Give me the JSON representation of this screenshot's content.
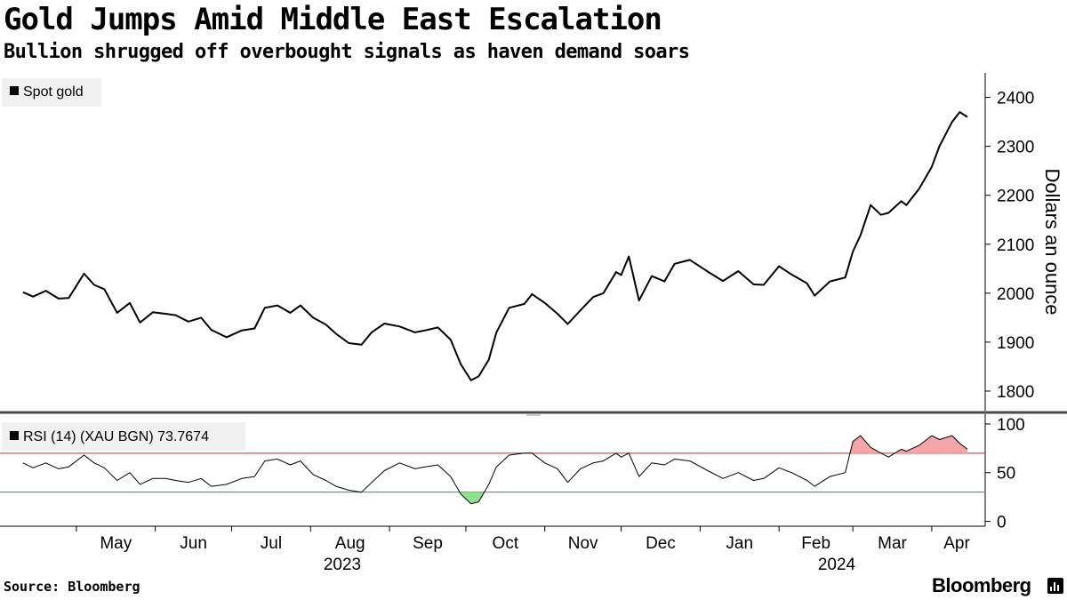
{
  "header": {
    "title": "Gold Jumps Amid Middle East Escalation",
    "subtitle": "Bullion shrugged off overbought signals as haven demand soars"
  },
  "footer": {
    "source": "Source: Bloomberg",
    "brand": "Bloomberg"
  },
  "colors": {
    "line": "#000000",
    "overbought": "#d62728",
    "overbought_fill": "#f4a6a6",
    "oversold": "#2ca02c",
    "oversold_fill": "#8fe08f",
    "divider": "#4a4a4a"
  },
  "chart_data": [
    {
      "type": "line",
      "panel": "price",
      "ylabel": "Dollars an ounce",
      "yaxis_side": "right",
      "ylim": [
        1760,
        2450
      ],
      "yticks": [
        1800,
        1900,
        2000,
        2100,
        2200,
        2300,
        2400
      ],
      "grid": false,
      "legend": {
        "placement": "top-left"
      },
      "series": [
        {
          "name": "Spot gold",
          "x": [
            "2023-04-10",
            "2023-04-14",
            "2023-04-19",
            "2023-04-24",
            "2023-04-28",
            "2023-05-04",
            "2023-05-08",
            "2023-05-12",
            "2023-05-17",
            "2023-05-22",
            "2023-05-26",
            "2023-05-31",
            "2023-06-05",
            "2023-06-09",
            "2023-06-14",
            "2023-06-19",
            "2023-06-23",
            "2023-06-29",
            "2023-07-05",
            "2023-07-10",
            "2023-07-14",
            "2023-07-19",
            "2023-07-24",
            "2023-07-28",
            "2023-08-02",
            "2023-08-07",
            "2023-08-11",
            "2023-08-16",
            "2023-08-21",
            "2023-08-25",
            "2023-08-30",
            "2023-09-05",
            "2023-09-11",
            "2023-09-15",
            "2023-09-20",
            "2023-09-25",
            "2023-09-29",
            "2023-10-03",
            "2023-10-06",
            "2023-10-10",
            "2023-10-13",
            "2023-10-18",
            "2023-10-24",
            "2023-10-27",
            "2023-11-01",
            "2023-11-06",
            "2023-11-10",
            "2023-11-15",
            "2023-11-20",
            "2023-11-24",
            "2023-11-29",
            "2023-12-01",
            "2023-12-04",
            "2023-12-08",
            "2023-12-13",
            "2023-12-18",
            "2023-12-22",
            "2023-12-28",
            "2024-01-04",
            "2024-01-10",
            "2024-01-16",
            "2024-01-22",
            "2024-01-26",
            "2024-02-01",
            "2024-02-06",
            "2024-02-12",
            "2024-02-15",
            "2024-02-21",
            "2024-02-27",
            "2024-03-01",
            "2024-03-04",
            "2024-03-08",
            "2024-03-12",
            "2024-03-15",
            "2024-03-20",
            "2024-03-22",
            "2024-03-27",
            "2024-04-01",
            "2024-04-04",
            "2024-04-09",
            "2024-04-12",
            "2024-04-15"
          ],
          "values": [
            2002,
            1993,
            2005,
            1989,
            1990,
            2040,
            2017,
            2008,
            1960,
            1980,
            1940,
            1961,
            1958,
            1955,
            1942,
            1950,
            1925,
            1910,
            1924,
            1928,
            1970,
            1975,
            1960,
            1975,
            1950,
            1936,
            1917,
            1898,
            1895,
            1920,
            1938,
            1932,
            1920,
            1924,
            1930,
            1905,
            1855,
            1822,
            1830,
            1864,
            1920,
            1970,
            1978,
            1998,
            1980,
            1958,
            1937,
            1965,
            1992,
            2000,
            2043,
            2037,
            2075,
            1985,
            2035,
            2024,
            2060,
            2068,
            2044,
            2025,
            2045,
            2018,
            2017,
            2055,
            2038,
            2020,
            1995,
            2024,
            2032,
            2085,
            2118,
            2180,
            2160,
            2164,
            2188,
            2180,
            2213,
            2258,
            2300,
            2350,
            2370,
            2360
          ]
        }
      ]
    },
    {
      "type": "line",
      "panel": "rsi",
      "ylim": [
        -5,
        110
      ],
      "yticks": [
        0,
        50,
        100
      ],
      "overbought_level": 70,
      "oversold_level": 30,
      "legend": {
        "placement": "top-left"
      },
      "series": [
        {
          "name": "RSI (14) (XAU BGN)",
          "last_value_label": "73.7674",
          "x": [
            "2023-04-10",
            "2023-04-14",
            "2023-04-19",
            "2023-04-24",
            "2023-04-28",
            "2023-05-04",
            "2023-05-08",
            "2023-05-12",
            "2023-05-17",
            "2023-05-22",
            "2023-05-26",
            "2023-05-31",
            "2023-06-05",
            "2023-06-09",
            "2023-06-14",
            "2023-06-19",
            "2023-06-23",
            "2023-06-29",
            "2023-07-05",
            "2023-07-10",
            "2023-07-14",
            "2023-07-19",
            "2023-07-24",
            "2023-07-28",
            "2023-08-02",
            "2023-08-07",
            "2023-08-11",
            "2023-08-16",
            "2023-08-21",
            "2023-08-25",
            "2023-08-30",
            "2023-09-05",
            "2023-09-11",
            "2023-09-15",
            "2023-09-20",
            "2023-09-25",
            "2023-09-29",
            "2023-10-03",
            "2023-10-06",
            "2023-10-10",
            "2023-10-13",
            "2023-10-18",
            "2023-10-24",
            "2023-10-27",
            "2023-11-01",
            "2023-11-06",
            "2023-11-10",
            "2023-11-15",
            "2023-11-20",
            "2023-11-24",
            "2023-11-29",
            "2023-12-01",
            "2023-12-04",
            "2023-12-08",
            "2023-12-13",
            "2023-12-18",
            "2023-12-22",
            "2023-12-28",
            "2024-01-04",
            "2024-01-10",
            "2024-01-16",
            "2024-01-22",
            "2024-01-26",
            "2024-02-01",
            "2024-02-06",
            "2024-02-12",
            "2024-02-15",
            "2024-02-21",
            "2024-02-27",
            "2024-03-01",
            "2024-03-04",
            "2024-03-08",
            "2024-03-12",
            "2024-03-15",
            "2024-03-20",
            "2024-03-22",
            "2024-03-27",
            "2024-04-01",
            "2024-04-04",
            "2024-04-09",
            "2024-04-12",
            "2024-04-15"
          ],
          "values": [
            60,
            55,
            60,
            54,
            56,
            68,
            60,
            55,
            42,
            50,
            38,
            44,
            44,
            42,
            40,
            44,
            36,
            38,
            44,
            46,
            62,
            64,
            58,
            62,
            48,
            42,
            36,
            32,
            30,
            40,
            52,
            60,
            54,
            56,
            58,
            46,
            28,
            18,
            20,
            38,
            56,
            68,
            70,
            70,
            60,
            54,
            40,
            54,
            60,
            62,
            70,
            66,
            70,
            46,
            60,
            58,
            64,
            62,
            52,
            44,
            50,
            42,
            44,
            55,
            50,
            42,
            36,
            46,
            50,
            82,
            88,
            76,
            70,
            66,
            74,
            72,
            78,
            88,
            84,
            88,
            80,
            74
          ]
        }
      ]
    }
  ],
  "axis": {
    "months": [
      "May",
      "Jun",
      "Jul",
      "Aug",
      "Sep",
      "Oct",
      "Nov",
      "Dec",
      "Jan",
      "Feb",
      "Mar",
      "Apr"
    ],
    "years": [
      "2023",
      "2024"
    ]
  }
}
